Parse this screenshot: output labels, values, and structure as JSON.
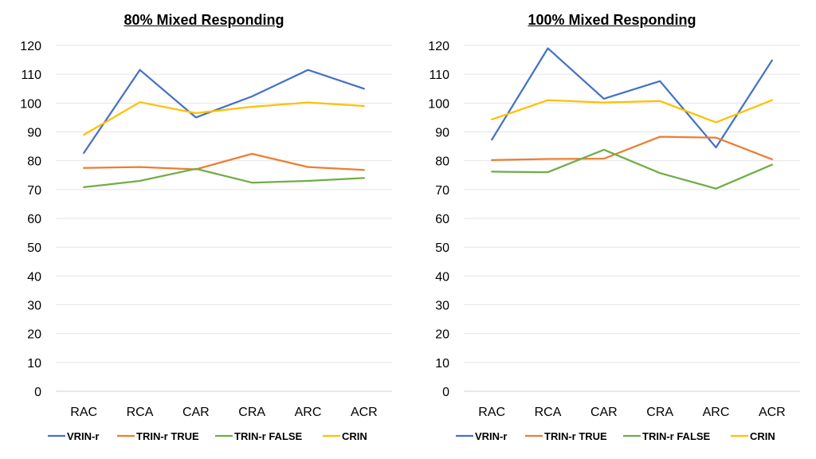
{
  "chart_data": [
    {
      "type": "line",
      "title": "80% Mixed Responding",
      "categories": [
        "RAC",
        "RCA",
        "CAR",
        "CRA",
        "ARC",
        "ACR"
      ],
      "ylim": [
        0,
        120
      ],
      "yticks": [
        "0",
        "10",
        "20",
        "30",
        "40",
        "50",
        "60",
        "70",
        "80",
        "90",
        "100",
        "110",
        "120"
      ],
      "grid": true,
      "legend": "bottom",
      "series": [
        {
          "name": "VRIN-r",
          "color": "#4472C4",
          "values": [
            82.7,
            111.5,
            95,
            102.3,
            111.5,
            105
          ]
        },
        {
          "name": "TRIN-r TRUE",
          "color": "#ED7D31",
          "values": [
            77.5,
            77.8,
            77,
            82.4,
            77.8,
            76.8
          ]
        },
        {
          "name": "TRIN-r FALSE",
          "color": "#70AD47",
          "values": [
            70.8,
            73,
            77.2,
            72.4,
            73,
            74
          ]
        },
        {
          "name": "CRIN",
          "color": "#FFC000",
          "values": [
            89,
            100.3,
            96.5,
            98.7,
            100.2,
            99
          ]
        }
      ]
    },
    {
      "type": "line",
      "title": "100% Mixed Responding",
      "categories": [
        "RAC",
        "RCA",
        "CAR",
        "CRA",
        "ARC",
        "ACR"
      ],
      "ylim": [
        0,
        120
      ],
      "yticks": [
        "0",
        "10",
        "20",
        "30",
        "40",
        "50",
        "60",
        "70",
        "80",
        "90",
        "100",
        "110",
        "120"
      ],
      "grid": true,
      "legend": "bottom",
      "series": [
        {
          "name": "VRIN-r",
          "color": "#4472C4",
          "values": [
            87.3,
            119,
            101.5,
            107.6,
            84.6,
            114.8
          ]
        },
        {
          "name": "TRIN-r TRUE",
          "color": "#ED7D31",
          "values": [
            80.2,
            80.6,
            80.7,
            88.3,
            88,
            80.5
          ]
        },
        {
          "name": "TRIN-r FALSE",
          "color": "#70AD47",
          "values": [
            76.2,
            76,
            83.8,
            75.7,
            70.3,
            78.6
          ]
        },
        {
          "name": "CRIN",
          "color": "#FFC000",
          "values": [
            94.3,
            101,
            100.2,
            100.7,
            93.3,
            101
          ]
        }
      ]
    }
  ]
}
